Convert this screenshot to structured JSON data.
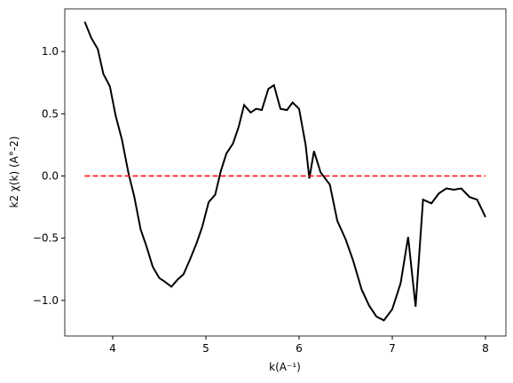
{
  "chart_data": {
    "type": "line",
    "xlabel": "k(A⁻¹)",
    "ylabel": "k2 χ(k) (A°-2)",
    "xlim": [
      3.486,
      8.219
    ],
    "ylim": [
      -1.286,
      1.343
    ],
    "xticks": [
      4,
      5,
      6,
      7,
      8
    ],
    "yticks": [
      {
        "value": -1.0,
        "label": "−1.0"
      },
      {
        "value": -0.5,
        "label": "−0.5"
      },
      {
        "value": 0.0,
        "label": "0.0"
      },
      {
        "value": 0.5,
        "label": "0.5"
      },
      {
        "value": 1.0,
        "label": "1.0"
      }
    ],
    "series": [
      {
        "color": "#000000",
        "dash": false,
        "x": [
          3.7,
          3.77,
          3.84,
          3.9,
          3.97,
          4.03,
          4.1,
          4.17,
          4.23,
          4.3,
          4.36,
          4.43,
          4.5,
          4.56,
          4.63,
          4.7,
          4.76,
          4.83,
          4.9,
          4.96,
          5.03,
          5.1,
          5.16,
          5.22,
          5.29,
          5.35,
          5.41,
          5.48,
          5.54,
          5.6,
          5.67,
          5.73,
          5.8,
          5.87,
          5.93,
          6.0,
          6.07,
          6.11,
          6.16,
          6.23,
          6.33,
          6.41,
          6.5,
          6.58,
          6.67,
          6.75,
          6.83,
          6.91,
          7.0,
          7.09,
          7.17,
          7.25,
          7.33,
          7.42,
          7.5,
          7.58,
          7.66,
          7.74,
          7.83,
          7.91,
          8.0
        ],
        "values": [
          1.24,
          1.11,
          1.02,
          0.82,
          0.72,
          0.49,
          0.29,
          0.02,
          -0.16,
          -0.43,
          -0.56,
          -0.73,
          -0.82,
          -0.85,
          -0.89,
          -0.83,
          -0.79,
          -0.67,
          -0.54,
          -0.41,
          -0.21,
          -0.15,
          0.04,
          0.18,
          0.26,
          0.39,
          0.57,
          0.51,
          0.54,
          0.53,
          0.7,
          0.73,
          0.54,
          0.53,
          0.59,
          0.54,
          0.25,
          -0.02,
          0.2,
          0.03,
          -0.07,
          -0.36,
          -0.51,
          -0.68,
          -0.91,
          -1.04,
          -1.13,
          -1.16,
          -1.07,
          -0.86,
          -0.49,
          -1.05,
          -0.19,
          -0.22,
          -0.14,
          -0.1,
          -0.11,
          -0.1,
          -0.17,
          -0.19,
          -0.33
        ]
      },
      {
        "color": "#ff0000",
        "dash": true,
        "x": [
          3.7,
          8.0
        ],
        "values": [
          0,
          0
        ]
      }
    ]
  }
}
